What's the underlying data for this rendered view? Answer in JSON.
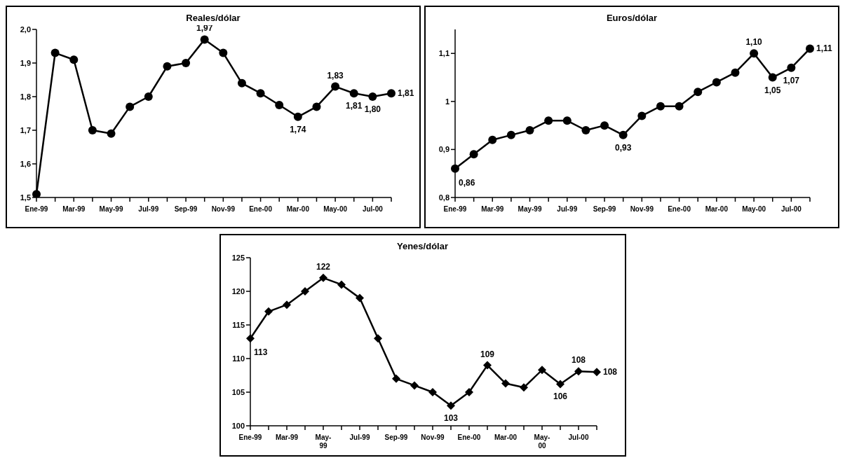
{
  "chart_data": [
    {
      "type": "line",
      "title": "Reales/dólar",
      "categories": [
        "Ene-99",
        null,
        "Mar-99",
        null,
        "May-99",
        null,
        "Jul-99",
        null,
        "Sep-99",
        null,
        "Nov-99",
        null,
        "Ene-00",
        null,
        "Mar-00",
        null,
        "May-00",
        null,
        "Jul-00",
        null
      ],
      "series": [
        {
          "color": "#000000",
          "values": [
            1.51,
            1.93,
            1.91,
            1.7,
            1.69,
            1.77,
            1.8,
            1.89,
            1.9,
            1.97,
            1.93,
            1.84,
            1.81,
            1.775,
            1.74,
            1.77,
            1.83,
            1.81,
            1.8,
            1.81
          ],
          "value_labels": [
            null,
            null,
            null,
            null,
            null,
            null,
            null,
            null,
            null,
            "1,97",
            null,
            null,
            null,
            null,
            "1,74",
            null,
            "1,83",
            "1,81",
            "1,80",
            "1,81"
          ]
        }
      ],
      "ylim": [
        1.5,
        2.0
      ],
      "yticks": [
        {
          "value": 1.5,
          "label": "1,5"
        },
        {
          "value": 1.6,
          "label": "1,6"
        },
        {
          "value": 1.7,
          "label": "1,7"
        },
        {
          "value": 1.8,
          "label": "1,8"
        },
        {
          "value": 1.9,
          "label": "1,9"
        },
        {
          "value": 2.0,
          "label": "2,0"
        }
      ],
      "marker": "circle",
      "grid": false,
      "legend": false
    },
    {
      "type": "line",
      "title": "Euros/dólar",
      "categories": [
        "Ene-99",
        null,
        "Mar-99",
        null,
        "May-99",
        null,
        "Jul-99",
        null,
        "Sep-99",
        null,
        "Nov-99",
        null,
        "Ene-00",
        null,
        "Mar-00",
        null,
        "May-00",
        null,
        "Jul-00",
        null
      ],
      "series": [
        {
          "color": "#000000",
          "values": [
            0.86,
            0.89,
            0.92,
            0.93,
            0.94,
            0.96,
            0.96,
            0.94,
            0.95,
            0.93,
            0.97,
            0.99,
            0.99,
            1.02,
            1.04,
            1.06,
            1.1,
            1.05,
            1.07,
            1.11
          ],
          "value_labels": [
            "0,86",
            null,
            null,
            null,
            null,
            null,
            null,
            null,
            null,
            "0,93",
            null,
            null,
            null,
            null,
            null,
            null,
            "1,10",
            "1,05",
            "1,07",
            "1,11"
          ]
        }
      ],
      "ylim": [
        0.8,
        1.15
      ],
      "yticks": [
        {
          "value": 0.8,
          "label": "0,8"
        },
        {
          "value": 0.9,
          "label": "0,9"
        },
        1,
        {
          "value": 1.1,
          "label": "1,1"
        }
      ],
      "marker": "circle",
      "grid": false,
      "legend": false
    },
    {
      "type": "line",
      "title": "Yenes/dólar",
      "categories": [
        "Ene-99",
        null,
        "Mar-99",
        null,
        "May-99",
        null,
        "Jul-99",
        null,
        "Sep-99",
        null,
        "Nov-99",
        null,
        "Ene-00",
        null,
        "Mar-00",
        null,
        "May-00",
        null,
        "Jul-00",
        null
      ],
      "series": [
        {
          "color": "#000000",
          "values": [
            113,
            117,
            118,
            120,
            122,
            121,
            119,
            113,
            107,
            106,
            105,
            103,
            105,
            109,
            106.3,
            105.7,
            108.3,
            106.2,
            108.1,
            108
          ],
          "value_labels": [
            "113",
            null,
            null,
            null,
            "122",
            null,
            null,
            null,
            null,
            null,
            null,
            "103",
            null,
            "109",
            null,
            null,
            null,
            "106",
            "108",
            "108"
          ]
        }
      ],
      "ylim": [
        100,
        125
      ],
      "yticks": [
        100,
        105,
        110,
        115,
        120,
        125
      ],
      "marker": "diamond",
      "grid": false,
      "legend": false
    }
  ]
}
